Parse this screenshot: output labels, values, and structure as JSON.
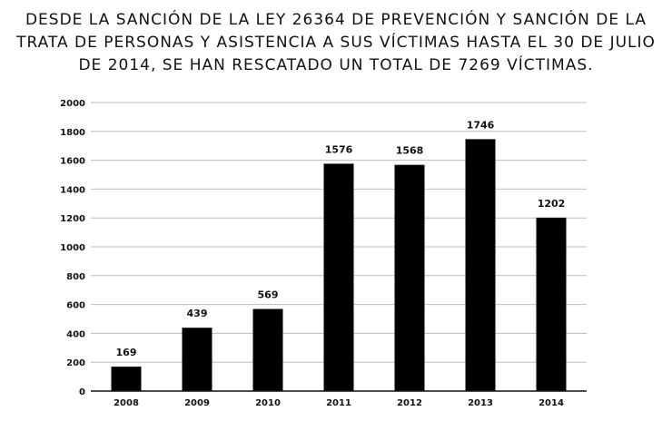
{
  "title": "Desde la sanción de la Ley 26364 de prevención y sanción de la trata de personas y asistencia a sus víctimas hasta el 30 de julio de 2014, se han rescatado un total de 7269 víctimas.",
  "chart_data": {
    "type": "bar",
    "categories": [
      "2008",
      "2009",
      "2010",
      "2011",
      "2012",
      "2013",
      "2014"
    ],
    "values": [
      169,
      439,
      569,
      1576,
      1568,
      1746,
      1202
    ],
    "data_labels": [
      "169",
      "439",
      "569",
      "1576",
      "1568",
      "1746",
      "1202"
    ],
    "yticks": [
      "0",
      "200",
      "400",
      "600",
      "800",
      "1000",
      "1200",
      "1400",
      "1600",
      "1800",
      "2000"
    ],
    "ylim": [
      0,
      2000
    ],
    "grid": true,
    "bar_color": "#000000",
    "grid_color": "#bdbdbd"
  }
}
